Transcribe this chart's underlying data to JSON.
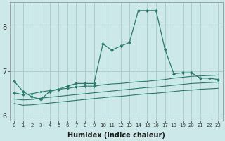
{
  "xlabel": "Humidex (Indice chaleur)",
  "x_ticks": [
    0,
    1,
    2,
    3,
    4,
    5,
    6,
    7,
    8,
    9,
    10,
    11,
    12,
    13,
    14,
    15,
    16,
    17,
    18,
    19,
    20,
    21,
    22,
    23
  ],
  "xlim": [
    -0.5,
    23.5
  ],
  "ylim": [
    5.9,
    8.55
  ],
  "y_ticks": [
    6,
    7,
    8
  ],
  "bg_color": "#cce8e8",
  "grid_color": "#aacece",
  "line_color": "#2a7a6a",
  "line1": [
    6.78,
    6.55,
    6.43,
    6.37,
    6.55,
    6.6,
    6.67,
    6.73,
    6.73,
    6.73,
    7.62,
    7.48,
    7.57,
    7.65,
    8.37,
    8.37,
    8.37,
    7.5,
    6.95,
    6.97,
    6.97,
    6.85,
    6.85,
    6.82
  ],
  "line2": [
    6.52,
    6.48,
    6.5,
    6.54,
    6.57,
    6.6,
    6.62,
    6.65,
    6.67,
    6.67,
    6.7,
    6.72,
    6.73,
    6.75,
    6.77,
    6.78,
    6.8,
    6.82,
    6.85,
    6.87,
    6.89,
    6.9,
    6.91,
    6.92
  ],
  "line3": [
    6.38,
    6.36,
    6.37,
    6.4,
    6.42,
    6.44,
    6.46,
    6.48,
    6.5,
    6.52,
    6.54,
    6.56,
    6.58,
    6.6,
    6.62,
    6.64,
    6.65,
    6.67,
    6.69,
    6.71,
    6.73,
    6.74,
    6.75,
    6.76
  ],
  "line4": [
    6.28,
    6.24,
    6.25,
    6.27,
    6.29,
    6.31,
    6.33,
    6.35,
    6.37,
    6.39,
    6.41,
    6.43,
    6.44,
    6.46,
    6.48,
    6.5,
    6.51,
    6.53,
    6.55,
    6.57,
    6.58,
    6.6,
    6.61,
    6.62
  ]
}
